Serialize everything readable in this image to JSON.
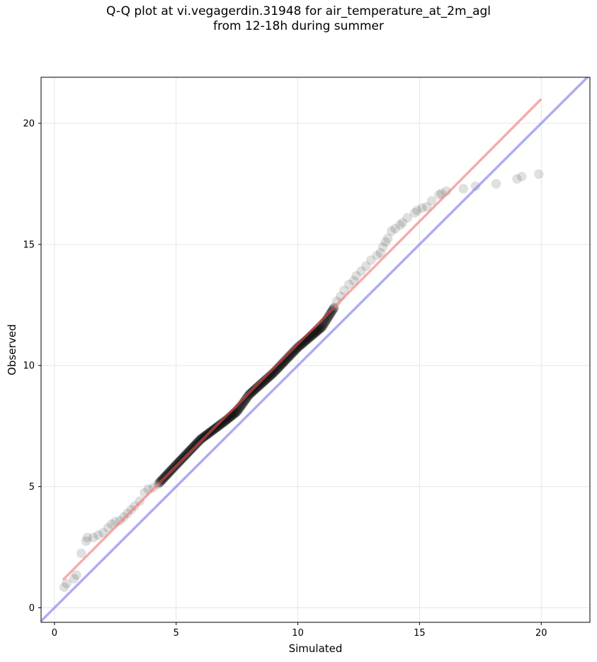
{
  "chart_data": {
    "type": "scatter",
    "title_lines": [
      "Q-Q plot at vi.vegagerdin.31948 for air_temperature_at_2m_agl",
      "from 12-18h during summer"
    ],
    "xlabel": "Simulated",
    "ylabel": "Observed",
    "xlim": [
      -0.55,
      22.0
    ],
    "ylim": [
      -0.6,
      21.9
    ],
    "xticks": [
      0,
      5,
      10,
      15,
      20
    ],
    "yticks": [
      0,
      5,
      10,
      15,
      20
    ],
    "grid": true,
    "colors": {
      "points": "#000000",
      "fit_line": "#f08080",
      "identity_line": "#8080f0",
      "fit_line_core": "#8b0000"
    },
    "identity_line": {
      "x": [
        -0.55,
        22.0
      ],
      "y": [
        -0.55,
        22.0
      ]
    },
    "fit_line": {
      "x": [
        0.35,
        20.0
      ],
      "y": [
        1.15,
        21.0
      ]
    },
    "sparse_points": [
      [
        0.4,
        0.85
      ],
      [
        0.5,
        1.0
      ],
      [
        0.8,
        1.2
      ],
      [
        0.9,
        1.35
      ],
      [
        1.1,
        2.25
      ],
      [
        1.3,
        2.75
      ],
      [
        1.35,
        2.9
      ],
      [
        1.6,
        2.9
      ],
      [
        19.0,
        17.7
      ],
      [
        19.2,
        17.8
      ],
      [
        19.9,
        17.9
      ],
      [
        18.15,
        17.5
      ],
      [
        17.3,
        17.4
      ],
      [
        16.8,
        17.3
      ],
      [
        16.1,
        17.2
      ],
      [
        15.9,
        17.1
      ],
      [
        15.8,
        17.05
      ],
      [
        15.5,
        16.8
      ],
      [
        15.3,
        16.55
      ],
      [
        15.1,
        16.5
      ],
      [
        14.9,
        16.4
      ],
      [
        14.8,
        16.3
      ],
      [
        14.5,
        16.1
      ],
      [
        14.3,
        15.9
      ],
      [
        14.2,
        15.8
      ],
      [
        14.0,
        15.65
      ],
      [
        13.85,
        15.55
      ],
      [
        13.7,
        15.25
      ],
      [
        13.6,
        15.1
      ],
      [
        13.5,
        14.9
      ],
      [
        13.4,
        14.65
      ],
      [
        13.25,
        14.55
      ],
      [
        13.0,
        14.35
      ],
      [
        12.8,
        14.1
      ],
      [
        12.6,
        13.9
      ],
      [
        12.4,
        13.7
      ],
      [
        12.3,
        13.5
      ],
      [
        12.1,
        13.35
      ],
      [
        11.9,
        13.1
      ],
      [
        11.75,
        12.85
      ],
      [
        11.6,
        12.65
      ],
      [
        1.8,
        3.0
      ],
      [
        2.0,
        3.1
      ],
      [
        2.2,
        3.3
      ],
      [
        2.35,
        3.45
      ],
      [
        2.5,
        3.55
      ],
      [
        2.7,
        3.6
      ],
      [
        2.85,
        3.75
      ],
      [
        3.0,
        3.9
      ],
      [
        3.15,
        4.05
      ],
      [
        3.3,
        4.2
      ],
      [
        3.5,
        4.4
      ],
      [
        3.7,
        4.75
      ],
      [
        3.85,
        4.9
      ],
      [
        4.05,
        4.95
      ],
      [
        4.25,
        5.1
      ]
    ],
    "dense_segment": {
      "x_start": 4.3,
      "x_end": 11.5,
      "n_points": 420,
      "y_at_x": [
        [
          4.3,
          5.15
        ],
        [
          5.0,
          5.9
        ],
        [
          6.0,
          6.95
        ],
        [
          7.0,
          7.7
        ],
        [
          7.5,
          8.1
        ],
        [
          8.0,
          8.8
        ],
        [
          9.0,
          9.7
        ],
        [
          10.0,
          10.75
        ],
        [
          11.0,
          11.6
        ],
        [
          11.5,
          12.4
        ]
      ]
    }
  }
}
